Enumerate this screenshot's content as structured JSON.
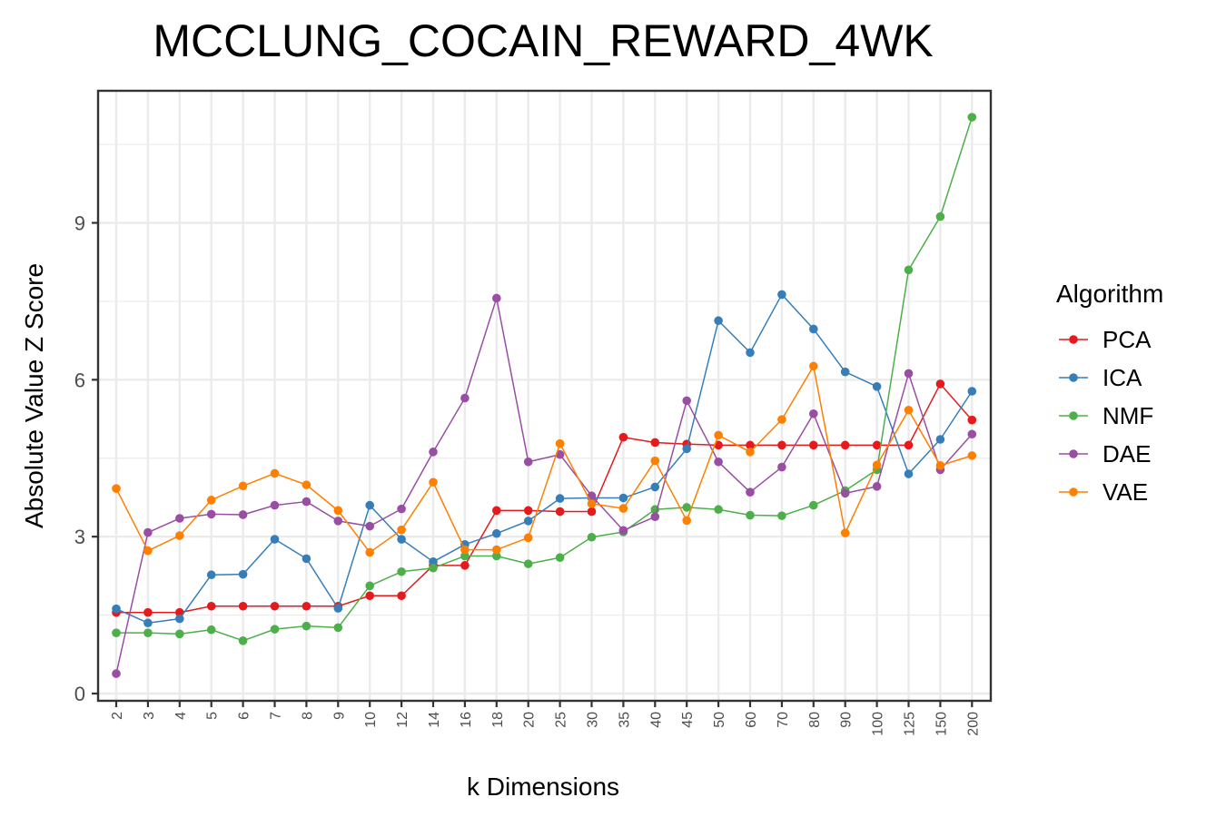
{
  "chart_data": {
    "type": "line",
    "title": "MCCLUNG_COCAIN_REWARD_4WK",
    "xlabel": "k Dimensions",
    "ylabel": "Absolute Value Z Score",
    "categories": [
      "2",
      "3",
      "4",
      "5",
      "6",
      "7",
      "8",
      "9",
      "10",
      "12",
      "14",
      "16",
      "18",
      "20",
      "25",
      "30",
      "35",
      "40",
      "45",
      "50",
      "60",
      "70",
      "80",
      "90",
      "100",
      "125",
      "150",
      "200"
    ],
    "yticks": [
      0,
      3,
      6,
      9
    ],
    "ylim": [
      -0.2,
      11.6
    ],
    "grid": true,
    "legend": {
      "title": "Algorithm",
      "position": "right"
    },
    "series": [
      {
        "name": "PCA",
        "color": "#e41a1c",
        "values": [
          1.55,
          1.55,
          1.55,
          1.67,
          1.67,
          1.67,
          1.67,
          1.67,
          1.87,
          1.87,
          2.45,
          2.45,
          3.5,
          3.5,
          3.48,
          3.48,
          4.9,
          4.8,
          4.77,
          4.75,
          4.75,
          4.75,
          4.75,
          4.75,
          4.75,
          4.75,
          5.92,
          5.23
        ]
      },
      {
        "name": "ICA",
        "color": "#377eb8",
        "values": [
          1.62,
          1.35,
          1.43,
          2.27,
          2.28,
          2.95,
          2.58,
          1.63,
          3.6,
          2.95,
          2.52,
          2.85,
          3.06,
          3.3,
          3.73,
          3.74,
          3.74,
          3.95,
          4.68,
          7.13,
          6.52,
          7.63,
          6.97,
          6.15,
          5.87,
          4.2,
          4.86,
          5.78
        ]
      },
      {
        "name": "NMF",
        "color": "#4daf4a",
        "values": [
          1.16,
          1.16,
          1.14,
          1.22,
          1.01,
          1.23,
          1.29,
          1.26,
          2.06,
          2.33,
          2.4,
          2.63,
          2.63,
          2.48,
          2.6,
          2.99,
          3.09,
          3.52,
          3.56,
          3.52,
          3.41,
          3.4,
          3.6,
          3.88,
          4.28,
          8.1,
          9.12,
          11.02
        ]
      },
      {
        "name": "DAE",
        "color": "#984ea3",
        "values": [
          0.38,
          3.08,
          3.35,
          3.43,
          3.42,
          3.6,
          3.67,
          3.3,
          3.2,
          3.53,
          4.62,
          5.65,
          7.56,
          4.43,
          4.57,
          3.78,
          3.12,
          3.38,
          5.6,
          4.43,
          3.85,
          4.33,
          5.35,
          3.83,
          3.96,
          6.12,
          4.28,
          4.96
        ]
      },
      {
        "name": "VAE",
        "color": "#ff7f00",
        "values": [
          3.92,
          2.73,
          3.02,
          3.7,
          3.97,
          4.21,
          3.99,
          3.5,
          2.7,
          3.13,
          4.04,
          2.75,
          2.75,
          2.98,
          4.78,
          3.63,
          3.54,
          4.45,
          3.31,
          4.94,
          4.62,
          5.24,
          6.26,
          3.07,
          4.37,
          5.42,
          4.36,
          4.55
        ]
      }
    ]
  }
}
